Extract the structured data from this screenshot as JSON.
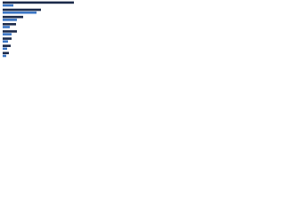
{
  "chart_data": {
    "type": "bar",
    "orientation": "horizontal",
    "categories": [
      null,
      null,
      null,
      null,
      null,
      null,
      null,
      null
    ],
    "series": [
      {
        "color": "#1b2a4a",
        "values": [
          80,
          43,
          23,
          15,
          16,
          10,
          9,
          7
        ]
      },
      {
        "color": "#3a75c4",
        "values": [
          12,
          38,
          16,
          8,
          10,
          6,
          5,
          4
        ]
      }
    ]
  }
}
